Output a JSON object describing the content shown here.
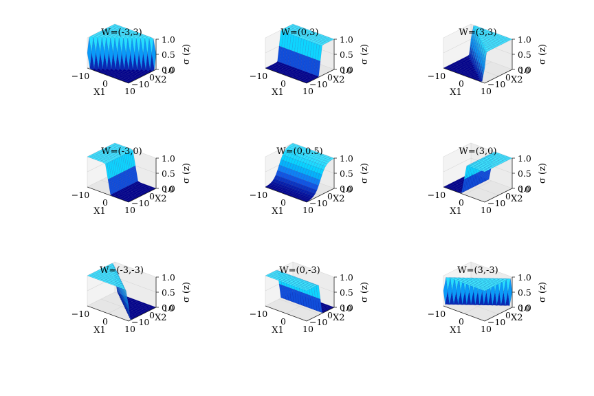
{
  "chart_data": {
    "type": "surface3d",
    "function": "sigmoid(w1*x1 + w2*x2)",
    "layout": "3x3",
    "x1_range": [
      -10,
      10
    ],
    "x2_range": [
      -10,
      10
    ],
    "z_range": [
      0,
      1
    ],
    "xlabel": "X1",
    "ylabel": "X2",
    "zlabel": "σ (z)",
    "x1_ticks": [
      "−10",
      "0",
      "10"
    ],
    "x2_ticks": [
      "−10",
      "0",
      "10"
    ],
    "z_ticks": [
      "0.0",
      "0.5",
      "1.0"
    ],
    "colormap": [
      "#00008b",
      "#1464f0",
      "#00d0ff",
      "#40e8ff"
    ],
    "subplots": [
      {
        "title": "W=(-3,3)",
        "w": [
          -3,
          3
        ]
      },
      {
        "title": "W=(0,3)",
        "w": [
          0,
          3
        ]
      },
      {
        "title": "W=(3,3)",
        "w": [
          3,
          3
        ]
      },
      {
        "title": "W=(-3,0)",
        "w": [
          -3,
          0
        ]
      },
      {
        "title": "W=(0,0.5)",
        "w": [
          0,
          0.5
        ]
      },
      {
        "title": "W=(3,0)",
        "w": [
          3,
          0
        ]
      },
      {
        "title": "W=(-3,-3)",
        "w": [
          -3,
          -3
        ]
      },
      {
        "title": "W=(0,-3)",
        "w": [
          0,
          -3
        ]
      },
      {
        "title": "W=(3,-3)",
        "w": [
          3,
          -3
        ]
      }
    ]
  }
}
